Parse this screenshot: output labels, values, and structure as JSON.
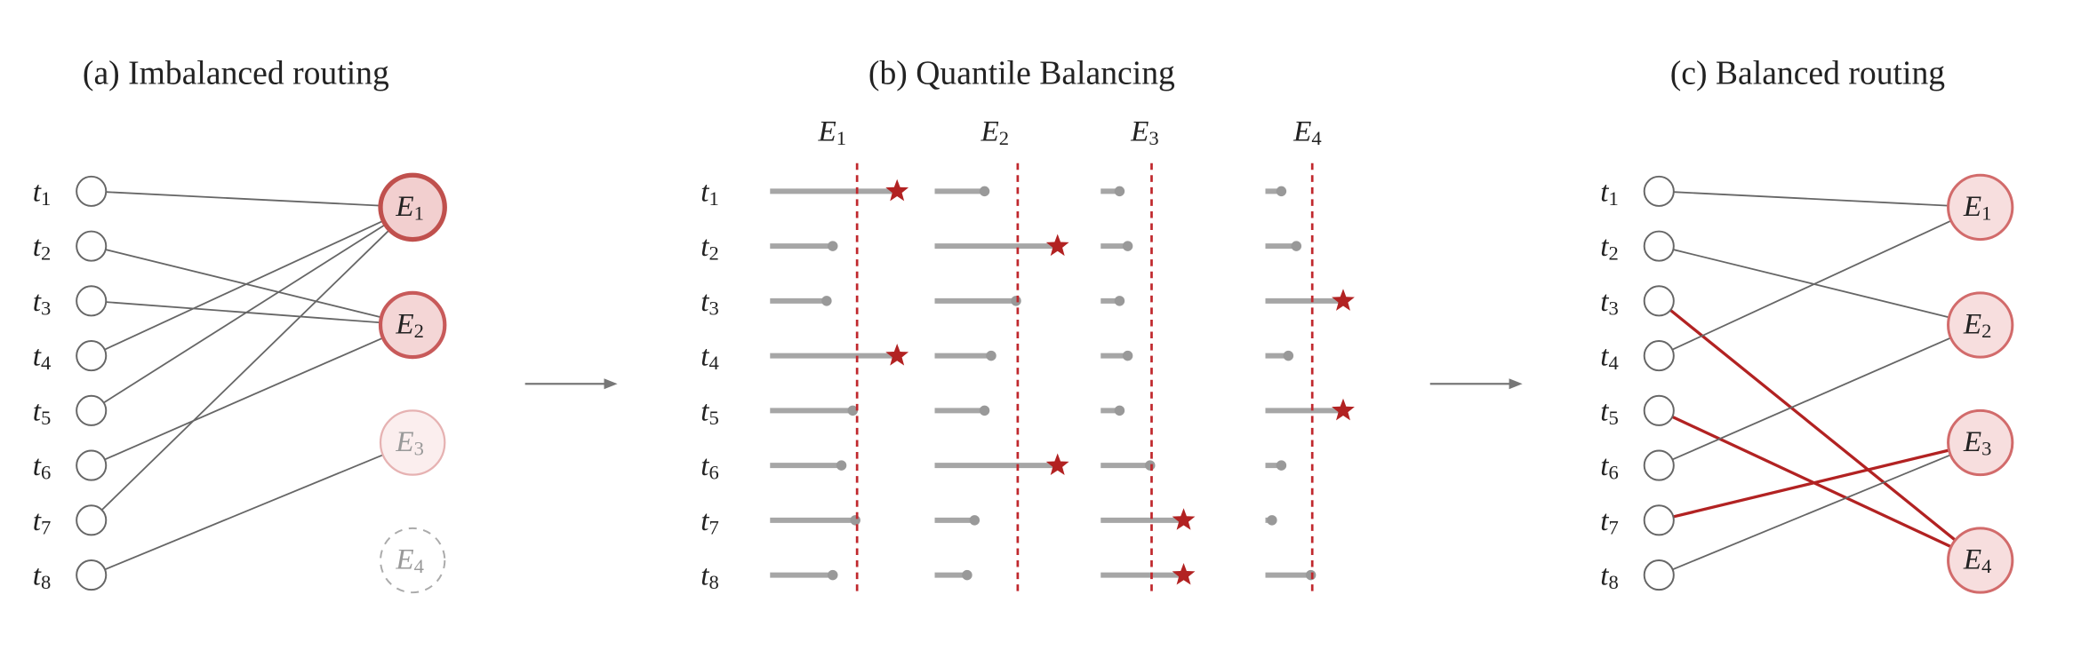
{
  "panels": [
    {
      "title": "(a) Imbalanced routing"
    },
    {
      "title": "(b) Quantile Balancing"
    },
    {
      "title": "(c) Balanced routing"
    }
  ],
  "tokens": [
    {
      "var": "t",
      "sub": "1"
    },
    {
      "var": "t",
      "sub": "2"
    },
    {
      "var": "t",
      "sub": "3"
    },
    {
      "var": "t",
      "sub": "4"
    },
    {
      "var": "t",
      "sub": "5"
    },
    {
      "var": "t",
      "sub": "6"
    },
    {
      "var": "t",
      "sub": "7"
    },
    {
      "var": "t",
      "sub": "8"
    }
  ],
  "experts": [
    {
      "var": "E",
      "sub": "1"
    },
    {
      "var": "E",
      "sub": "2"
    },
    {
      "var": "E",
      "sub": "3"
    },
    {
      "var": "E",
      "sub": "4"
    }
  ],
  "imbalanced_routing": {
    "assignment": [
      0,
      1,
      1,
      0,
      0,
      1,
      0,
      2
    ]
  },
  "quantile_balancing": {
    "threshold": 1,
    "scores": [
      [
        1.46,
        0.72,
        0.65,
        1.46,
        0.95,
        0.82,
        0.98,
        0.72
      ],
      [
        0.6,
        1.48,
        0.98,
        0.68,
        0.6,
        1.48,
        0.48,
        0.39
      ],
      [
        0.37,
        0.53,
        0.37,
        0.53,
        0.37,
        0.97,
        1.63,
        1.63
      ],
      [
        0.34,
        0.66,
        1.66,
        0.49,
        1.66,
        0.34,
        0.14,
        0.97
      ]
    ]
  },
  "balanced_routing": {
    "assignment": [
      0,
      1,
      3,
      0,
      3,
      1,
      2,
      2
    ],
    "rerouted": [
      false,
      false,
      true,
      false,
      true,
      false,
      true,
      false
    ]
  }
}
